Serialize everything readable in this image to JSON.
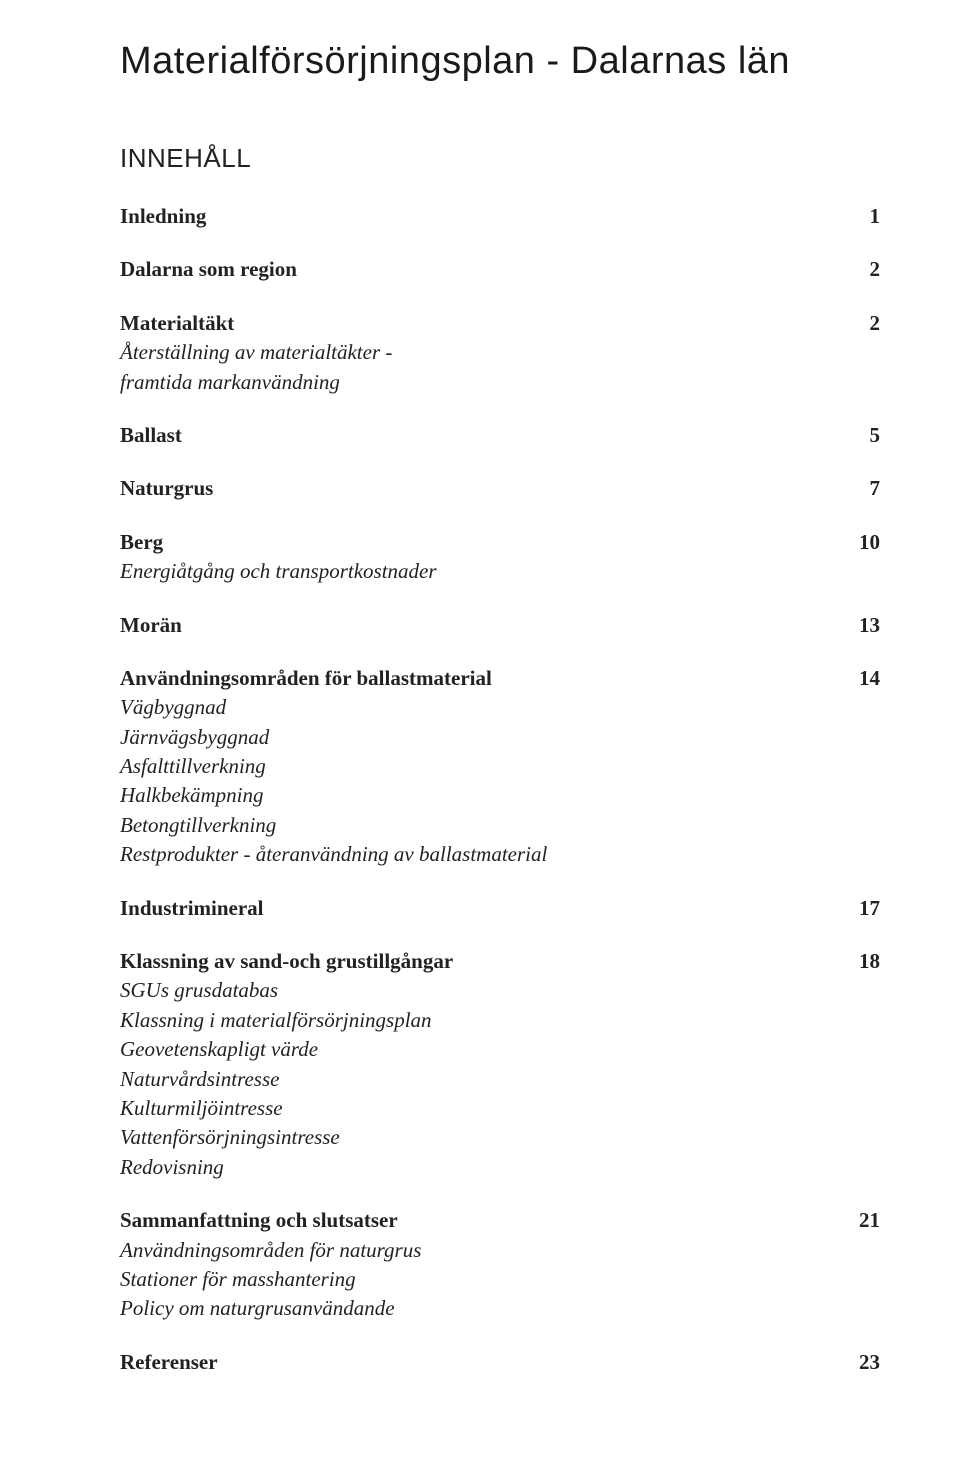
{
  "document": {
    "title": "Materialförsörjningsplan - Dalarnas län",
    "contents_heading": "INNEHÅLL",
    "toc": [
      {
        "main": {
          "label": "Inledning",
          "page": "1"
        },
        "subs": []
      },
      {
        "main": {
          "label": "Dalarna som region",
          "page": "2"
        },
        "subs": []
      },
      {
        "main": {
          "label": "Materialtäkt",
          "page": "2"
        },
        "subs": [
          {
            "label": "Återställning av materialtäkter -"
          },
          {
            "label": "framtida markanvändning"
          }
        ]
      },
      {
        "main": {
          "label": "Ballast",
          "page": "5"
        },
        "subs": []
      },
      {
        "main": {
          "label": "Naturgrus",
          "page": "7"
        },
        "subs": []
      },
      {
        "main": {
          "label": "Berg",
          "page": "10"
        },
        "subs": [
          {
            "label": "Energiåtgång och transportkostnader"
          }
        ]
      },
      {
        "main": {
          "label": "Morän",
          "page": "13"
        },
        "subs": []
      },
      {
        "main": {
          "label": "Användningsområden för ballastmaterial",
          "page": "14"
        },
        "subs": [
          {
            "label": "Vägbyggnad"
          },
          {
            "label": "Järnvägsbyggnad"
          },
          {
            "label": "Asfalttillverkning"
          },
          {
            "label": "Halkbekämpning"
          },
          {
            "label": "Betongtillverkning"
          },
          {
            "label": "Restprodukter - återanvändning av ballastmaterial"
          }
        ]
      },
      {
        "main": {
          "label": "Industrimineral",
          "page": "17"
        },
        "subs": []
      },
      {
        "main": {
          "label": "Klassning av sand-och grustillgångar",
          "page": "18"
        },
        "subs": [
          {
            "label": "SGUs grusdatabas"
          },
          {
            "label": "Klassning i materialförsörjningsplan"
          },
          {
            "label": "Geovetenskapligt värde"
          },
          {
            "label": "Naturvårdsintresse"
          },
          {
            "label": "Kulturmiljöintresse"
          },
          {
            "label": "Vattenförsörjningsintresse"
          },
          {
            "label": "Redovisning"
          }
        ]
      },
      {
        "main": {
          "label": "Sammanfattning och slutsatser",
          "page": "21"
        },
        "subs": [
          {
            "label": "Användningsområden för naturgrus"
          },
          {
            "label": "Stationer för masshantering"
          },
          {
            "label": "Policy om naturgrusanvändande"
          }
        ]
      },
      {
        "main": {
          "label": "Referenser",
          "page": "23"
        },
        "subs": []
      }
    ]
  },
  "style": {
    "background_color": "#ffffff",
    "text_color": "#222222",
    "title_fontsize": 38,
    "heading_fontsize": 26,
    "body_fontsize": 21,
    "title_font": "Arial",
    "body_font": "Georgia"
  }
}
